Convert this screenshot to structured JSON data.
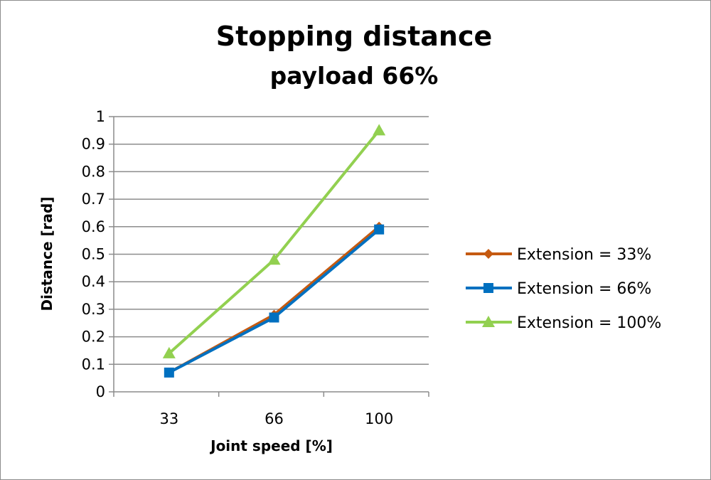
{
  "chart_data": {
    "type": "line",
    "title": "Stopping distance",
    "subtitle": "payload 66%",
    "xlabel": "Joint speed [%]",
    "ylabel": "Distance [rad]",
    "categories": [
      "33",
      "66",
      "100"
    ],
    "ylim": [
      0,
      1
    ],
    "yticks": [
      "0",
      "0.1",
      "0.2",
      "0.3",
      "0.4",
      "0.5",
      "0.6",
      "0.7",
      "0.8",
      "0.9",
      "1"
    ],
    "grid": true,
    "legend_position": "right",
    "series": [
      {
        "name": "Extension = 33%",
        "values": [
          0.07,
          0.28,
          0.6
        ],
        "color": "#c55a11",
        "marker": "diamond"
      },
      {
        "name": "Extension = 66%",
        "values": [
          0.07,
          0.27,
          0.59
        ],
        "color": "#0070c0",
        "marker": "square"
      },
      {
        "name": "Extension = 100%",
        "values": [
          0.14,
          0.48,
          0.95
        ],
        "color": "#92d050",
        "marker": "triangle"
      }
    ]
  }
}
